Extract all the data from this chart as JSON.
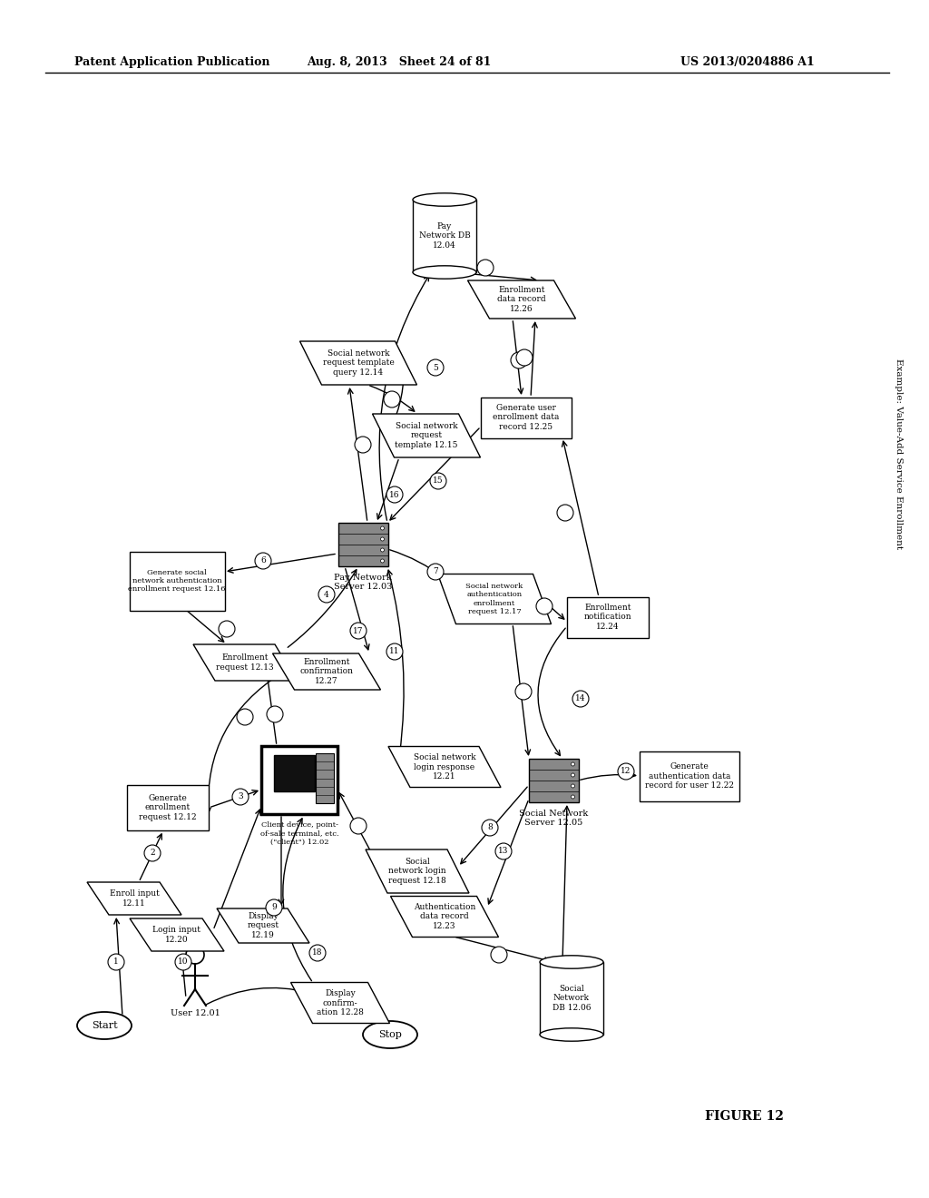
{
  "bg_color": "#ffffff",
  "header_left": "Patent Application Publication",
  "header_center": "Aug. 8, 2013   Sheet 24 of 81",
  "header_right": "US 2013/0204886 A1",
  "side_label": "Example: Value-Add Service Enrollment",
  "figure_label": "FIGURE 12"
}
